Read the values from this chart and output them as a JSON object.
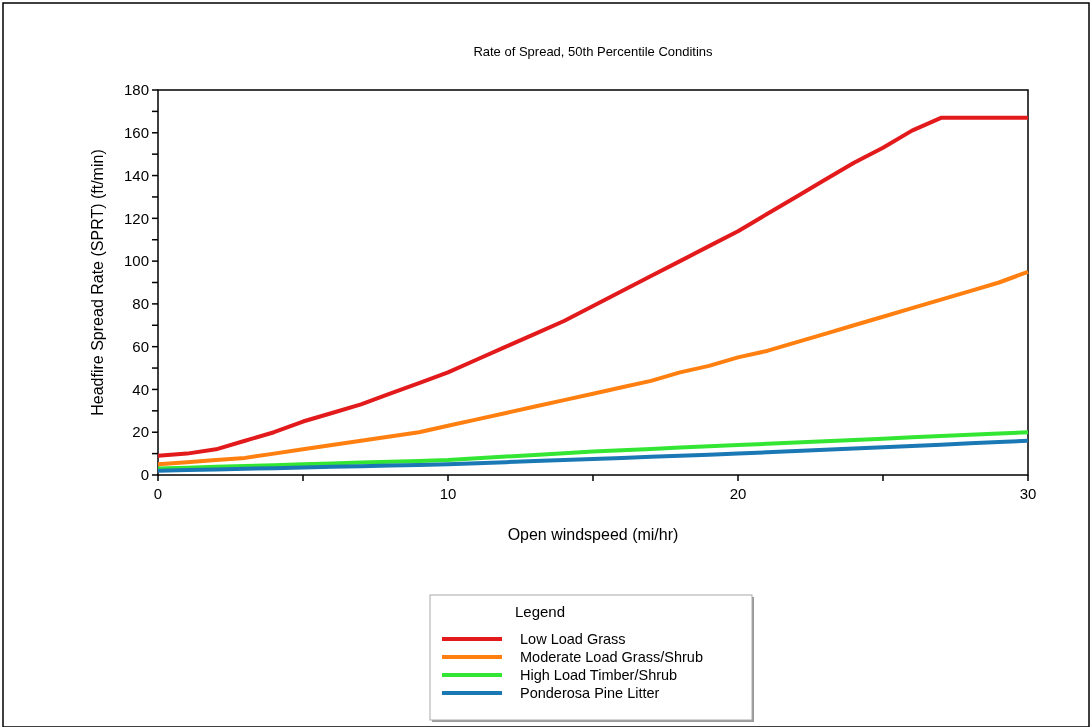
{
  "chart_data": {
    "type": "line",
    "title": "Rate of Spread, 50th Percentile Conditins",
    "xlabel": "Open windspeed (mi/hr)",
    "ylabel": "Headfire Spread Rate (SPRT) (ft/min)",
    "legend_title": "Legend",
    "legend": "bottom",
    "grid": false,
    "marker": "none",
    "line_style": "solid",
    "xlim": [
      0,
      30
    ],
    "xticks": [
      0,
      {
        "value": 5,
        "label": null
      },
      10,
      {
        "value": 15,
        "label": null
      },
      20,
      {
        "value": 25,
        "label": null
      },
      30
    ],
    "ylim": [
      0,
      180
    ],
    "yticks": [
      0,
      {
        "value": 10,
        "label": null
      },
      20,
      {
        "value": 30,
        "label": null
      },
      40,
      {
        "value": 50,
        "label": null
      },
      60,
      {
        "value": 70,
        "label": null
      },
      80,
      {
        "value": 90,
        "label": null
      },
      100,
      {
        "value": 110,
        "label": null
      },
      120,
      {
        "value": 130,
        "label": null
      },
      140,
      {
        "value": 150,
        "label": null
      },
      160,
      {
        "value": 170,
        "label": null
      },
      180
    ],
    "x": [
      0,
      1,
      2,
      3,
      4,
      5,
      6,
      7,
      8,
      9,
      10,
      11,
      12,
      13,
      14,
      15,
      16,
      17,
      18,
      19,
      20,
      21,
      22,
      23,
      24,
      25,
      26,
      27,
      28,
      29,
      30
    ],
    "series": [
      {
        "name": "Low Load Grass",
        "color": "#e31a1c",
        "values": [
          9,
          10,
          12,
          16,
          20,
          25,
          29,
          33,
          38,
          43,
          48,
          54,
          60,
          66,
          72,
          79,
          86,
          93,
          100,
          107,
          114,
          122,
          130,
          138,
          146,
          153,
          161,
          167,
          167,
          167,
          167
        ]
      },
      {
        "name": "Moderate Load Grass/Shrub",
        "color": "#ff8010",
        "values": [
          5,
          6,
          7,
          8,
          10,
          12,
          14,
          16,
          18,
          20,
          23,
          26,
          29,
          32,
          35,
          38,
          41,
          44,
          48,
          51,
          55,
          58,
          62,
          66,
          70,
          74,
          78,
          82,
          86,
          90,
          95
        ]
      },
      {
        "name": "High Load Timber/Shrub",
        "color": "#33e633",
        "values": [
          3,
          3.4,
          3.8,
          4.2,
          4.6,
          5,
          5.4,
          5.8,
          6.2,
          6.6,
          7,
          7.8,
          8.6,
          9.4,
          10.2,
          11,
          11.6,
          12.2,
          12.8,
          13.4,
          14,
          14.6,
          15.2,
          15.8,
          16.4,
          17,
          17.6,
          18.2,
          18.8,
          19.4,
          20
        ]
      },
      {
        "name": "Ponderosa Pine Litter",
        "color": "#1a78b4",
        "values": [
          2,
          2.3,
          2.6,
          2.9,
          3.2,
          3.5,
          3.8,
          4.1,
          4.4,
          4.7,
          5,
          5.5,
          6,
          6.5,
          7,
          7.5,
          8,
          8.5,
          9,
          9.5,
          10,
          10.6,
          11.2,
          11.8,
          12.4,
          13,
          13.6,
          14.2,
          14.8,
          15.4,
          16
        ]
      }
    ]
  }
}
